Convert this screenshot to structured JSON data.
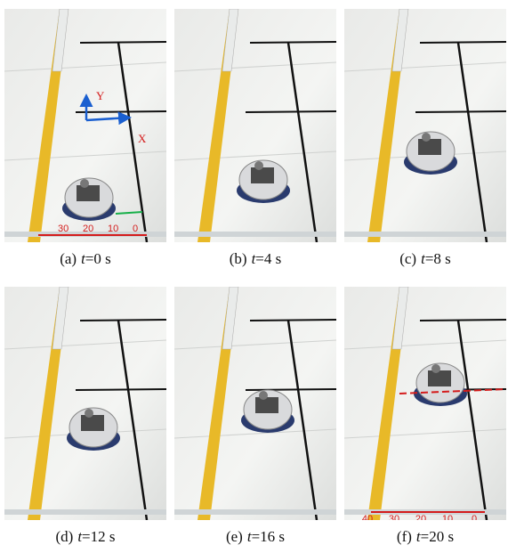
{
  "panels": [
    {
      "label": "(a)",
      "var": "t",
      "value": "=0 s"
    },
    {
      "label": "(b)",
      "var": "t",
      "value": "=4 s"
    },
    {
      "label": "(c)",
      "var": "t",
      "value": "=8 s"
    },
    {
      "label": "(d)",
      "var": "t",
      "value": "=12 s"
    },
    {
      "label": "(e)",
      "var": "t",
      "value": "=16 s"
    },
    {
      "label": "(f)",
      "var": "t",
      "value": "=20 s"
    }
  ],
  "annotations": {
    "axes": {
      "x": "X",
      "y": "Y"
    },
    "scale_a": [
      "30",
      "20",
      "10",
      "0"
    ],
    "scale_f": [
      "40",
      "30",
      "20",
      "10",
      "0"
    ]
  }
}
